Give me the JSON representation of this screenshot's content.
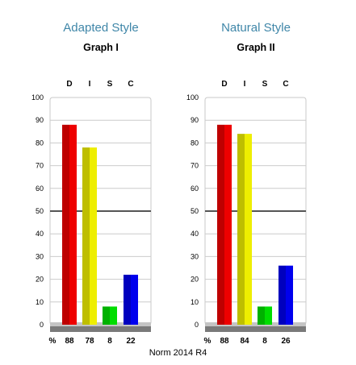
{
  "footer": "Norm 2014 R4",
  "percent_symbol": "%",
  "chart_data": [
    {
      "type": "bar",
      "style_title": "Adapted Style",
      "title": "Graph I",
      "categories": [
        "D",
        "I",
        "S",
        "C"
      ],
      "values": [
        88,
        78,
        8,
        22
      ],
      "value_labels": [
        "88",
        "78",
        "8",
        "22"
      ],
      "colors": [
        "#ee0000",
        "#eeee00",
        "#00dd00",
        "#0000ee"
      ],
      "ylim": [
        0,
        100
      ],
      "yticks": [
        0,
        10,
        20,
        30,
        40,
        50,
        60,
        70,
        80,
        90,
        100
      ],
      "reference_line": 50,
      "grid": true
    },
    {
      "type": "bar",
      "style_title": "Natural Style",
      "title": "Graph II",
      "categories": [
        "D",
        "I",
        "S",
        "C"
      ],
      "values": [
        88,
        84,
        8,
        26
      ],
      "value_labels": [
        "88",
        "84",
        "8",
        "26"
      ],
      "colors": [
        "#ee0000",
        "#eeee00",
        "#00dd00",
        "#0000ee"
      ],
      "ylim": [
        0,
        100
      ],
      "yticks": [
        0,
        10,
        20,
        30,
        40,
        50,
        60,
        70,
        80,
        90,
        100
      ],
      "reference_line": 50,
      "grid": true
    }
  ]
}
